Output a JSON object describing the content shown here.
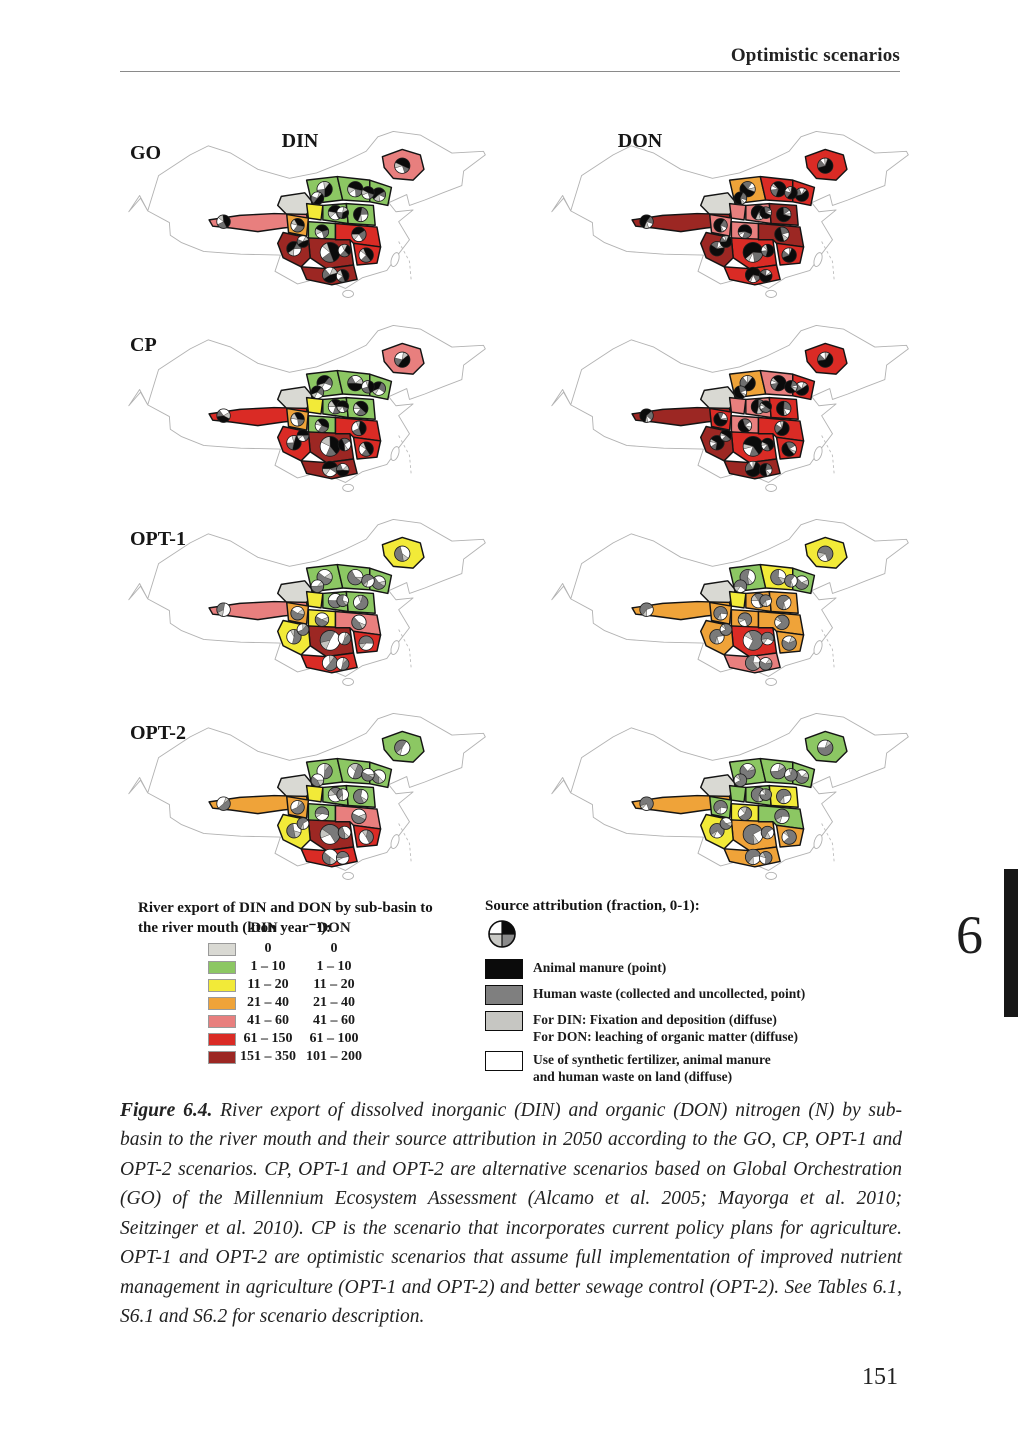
{
  "page": {
    "header": "Optimistic scenarios",
    "chapter_tab": "6",
    "page_number": "151"
  },
  "figure": {
    "rows": [
      {
        "label": "GO"
      },
      {
        "label": "CP"
      },
      {
        "label": "OPT-1"
      },
      {
        "label": "OPT-2"
      }
    ],
    "columns": [
      {
        "label": "DIN"
      },
      {
        "label": "DON"
      }
    ],
    "maps": [
      {
        "scenario": "GO",
        "nutrient": "DIN",
        "pie_style": "mixed",
        "region_colors": [
          4,
          0,
          1,
          1,
          1,
          2,
          1,
          1,
          4,
          3,
          1,
          6,
          5,
          6,
          6,
          5
        ]
      },
      {
        "scenario": "GO",
        "nutrient": "DON",
        "pie_style": "black",
        "region_colors": [
          5,
          0,
          3,
          5,
          5,
          4,
          4,
          6,
          6,
          4,
          4,
          5,
          6,
          6,
          5,
          5
        ]
      },
      {
        "scenario": "CP",
        "nutrient": "DIN",
        "pie_style": "mixed",
        "region_colors": [
          4,
          0,
          1,
          1,
          1,
          2,
          1,
          1,
          5,
          3,
          1,
          6,
          5,
          5,
          6,
          5
        ]
      },
      {
        "scenario": "CP",
        "nutrient": "DON",
        "pie_style": "black",
        "region_colors": [
          5,
          0,
          3,
          4,
          5,
          4,
          4,
          5,
          6,
          5,
          4,
          5,
          5,
          6,
          6,
          5
        ]
      },
      {
        "scenario": "OPT-1",
        "nutrient": "DIN",
        "pie_style": "graywhite",
        "region_colors": [
          2,
          0,
          1,
          1,
          1,
          2,
          1,
          1,
          4,
          3,
          2,
          6,
          4,
          2,
          5,
          5
        ]
      },
      {
        "scenario": "OPT-1",
        "nutrient": "DON",
        "pie_style": "gray",
        "region_colors": [
          2,
          0,
          1,
          2,
          1,
          2,
          3,
          3,
          3,
          3,
          3,
          5,
          3,
          3,
          4,
          3
        ]
      },
      {
        "scenario": "OPT-2",
        "nutrient": "DIN",
        "pie_style": "graywhite",
        "region_colors": [
          1,
          0,
          1,
          1,
          1,
          2,
          1,
          1,
          3,
          3,
          1,
          6,
          4,
          2,
          5,
          5
        ]
      },
      {
        "scenario": "OPT-2",
        "nutrient": "DON",
        "pie_style": "gray",
        "region_colors": [
          1,
          0,
          1,
          1,
          1,
          1,
          1,
          2,
          3,
          1,
          2,
          3,
          1,
          2,
          3,
          3
        ]
      }
    ]
  },
  "legend_export": {
    "title": "River export of DIN and DON by sub-basin to the river mouth (kton year⁻¹):",
    "col_din": "DIN",
    "col_don": "DON",
    "classes": [
      {
        "color": "#d9d9d3",
        "din": "0",
        "don": "0"
      },
      {
        "color": "#8cc763",
        "din": "1 – 10",
        "don": "1 – 10"
      },
      {
        "color": "#f2ea38",
        "din": "11 – 20",
        "don": "11 – 20"
      },
      {
        "color": "#efa339",
        "din": "21 – 40",
        "don": "21 – 40"
      },
      {
        "color": "#e87f7e",
        "din": "41 – 60",
        "don": "41 – 60"
      },
      {
        "color": "#da2b25",
        "din": "61 – 150",
        "don": "61 – 100"
      },
      {
        "color": "#9c2723",
        "din": "151 – 350",
        "don": "101 – 200"
      }
    ]
  },
  "legend_source": {
    "title": "Source attribution (fraction, 0-1):",
    "items": [
      {
        "color": "#0b0b0b",
        "line1": "Animal manure (point)",
        "line2": ""
      },
      {
        "color": "#7f7f7f",
        "line1": "Human waste (collected and uncollected, point)",
        "line2": ""
      },
      {
        "color": "#c6c6c2",
        "line1": "For DIN: Fixation and deposition (diffuse)",
        "line2": "For DON: leaching of organic matter (diffuse)"
      },
      {
        "color": "#ffffff",
        "line1": "Use of synthetic fertilizer, animal manure",
        "line2": "and human waste on land (diffuse)"
      }
    ]
  },
  "caption": {
    "label": "Figure 6.4.",
    "body": "River export of dissolved inorganic (DIN) and organic (DON) nitrogen (N) by sub-basin to the river mouth and their source attribution in 2050 according to the GO, CP, OPT-1 and OPT-2 scenarios. CP, OPT-1 and OPT-2 are alternative scenarios based on Global Orchestration (GO) of the Millennium Ecosystem Assessment (Alcamo et al. 2005; Mayorga et al. 2010; Seitzinger et al. 2010). CP is the scenario that incorporates current policy plans for agriculture. OPT-1 and OPT-2 are optimistic scenarios that assume full implementation of improved nutrient management in agriculture (OPT-1 and OPT-2) and better sewage control (OPT-2). See Tables 6.1, S6.1 and S6.2 for scenario description."
  }
}
